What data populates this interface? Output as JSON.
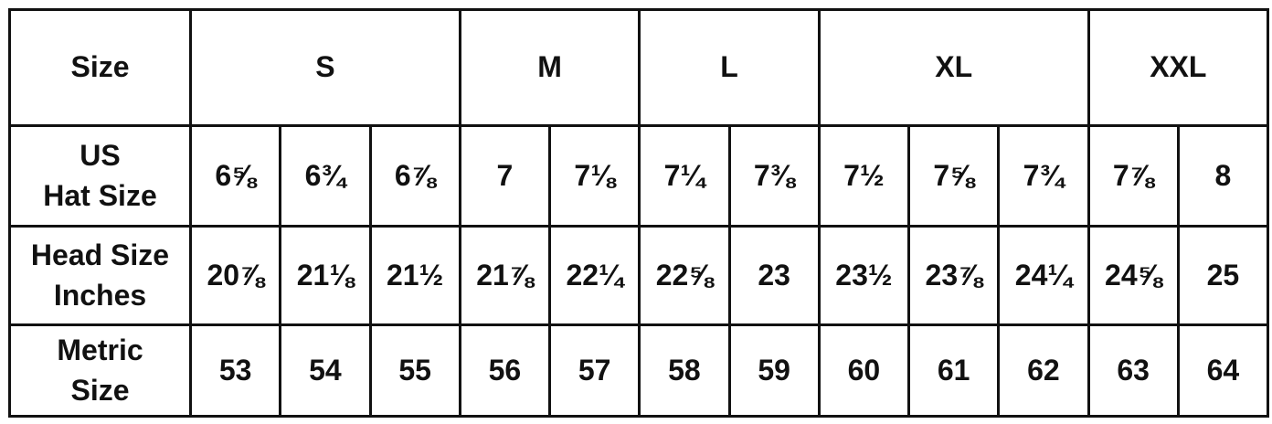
{
  "header": {
    "label": "Size",
    "sizes": [
      {
        "name": "S",
        "span": 3
      },
      {
        "name": "M",
        "span": 2
      },
      {
        "name": "L",
        "span": 2
      },
      {
        "name": "XL",
        "span": 3
      },
      {
        "name": "XXL",
        "span": 2
      }
    ]
  },
  "rows": [
    {
      "label_line1": "US",
      "label_line2": "Hat Size",
      "values": [
        "6⅝",
        "6¾",
        "6⅞",
        "7",
        "7⅛",
        "7¼",
        "7⅜",
        "7½",
        "7⅝",
        "7¾",
        "7⅞",
        "8"
      ]
    },
    {
      "label_line1": "Head Size",
      "label_line2": "Inches",
      "values": [
        "20⅞",
        "21⅛",
        "21½",
        "21⅞",
        "22¼",
        "22⅝",
        "23",
        "23½",
        "23⅞",
        "24¼",
        "24⅝",
        "25"
      ]
    },
    {
      "label_line1": "Metric",
      "label_line2": "Size",
      "values": [
        "53",
        "54",
        "55",
        "56",
        "57",
        "58",
        "59",
        "60",
        "61",
        "62",
        "63",
        "64"
      ]
    }
  ]
}
